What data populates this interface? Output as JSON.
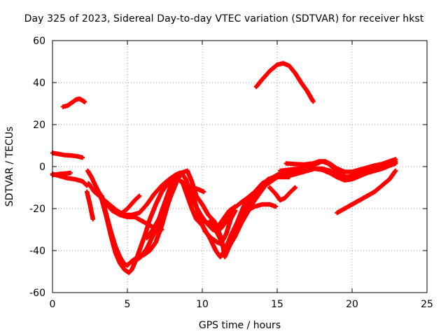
{
  "chart_data": {
    "type": "scatter",
    "title": "Day 325 of 2023, Sidereal Day-to-day VTEC variation (SDTVAR) for receiver hkst",
    "xlabel": "GPS time / hours",
    "ylabel": "SDTVAR / TECUs",
    "xlim": [
      0,
      25
    ],
    "ylim": [
      -60,
      60
    ],
    "xticks": [
      "0",
      "5",
      "10",
      "15",
      "20",
      "25"
    ],
    "yticks": [
      "60",
      "40",
      "20",
      "0",
      "-20",
      "-40",
      "-60"
    ],
    "grid": true,
    "marker": "+",
    "color": "#ff0000",
    "series": [
      {
        "name": "s1",
        "points": [
          [
            0.7,
            28.5
          ],
          [
            1.0,
            29
          ],
          [
            1.3,
            30.5
          ],
          [
            1.6,
            32
          ],
          [
            1.8,
            32.3
          ],
          [
            2.0,
            31.5
          ],
          [
            2.15,
            30.8
          ]
        ]
      },
      {
        "name": "s2",
        "points": [
          [
            13.6,
            38
          ],
          [
            14.0,
            41.5
          ],
          [
            14.5,
            45.5
          ],
          [
            15.0,
            48.5
          ],
          [
            15.4,
            49.2
          ],
          [
            15.8,
            48
          ],
          [
            16.2,
            44.5
          ],
          [
            16.6,
            40
          ],
          [
            17.0,
            36
          ],
          [
            17.4,
            31
          ]
        ]
      },
      {
        "name": "s3",
        "points": [
          [
            0.0,
            6.5
          ],
          [
            0.4,
            6.0
          ],
          [
            0.8,
            5.5
          ],
          [
            1.2,
            5.3
          ],
          [
            1.6,
            5.0
          ],
          [
            2.0,
            4.3
          ]
        ]
      },
      {
        "name": "s4",
        "points": [
          [
            0.0,
            -3.5
          ],
          [
            0.5,
            -4.5
          ],
          [
            1.0,
            -5.5
          ],
          [
            1.5,
            -6.0
          ],
          [
            2.0,
            -7.0
          ],
          [
            2.3,
            -9.0
          ]
        ]
      },
      {
        "name": "s5",
        "points": [
          [
            0.0,
            -4.0
          ],
          [
            0.5,
            -3.5
          ],
          [
            1.0,
            -3.2
          ],
          [
            1.2,
            -3.0
          ]
        ]
      },
      {
        "name": "s6",
        "points": [
          [
            2.35,
            -2
          ],
          [
            2.6,
            -5
          ],
          [
            3.0,
            -11
          ],
          [
            3.3,
            -16
          ],
          [
            3.6,
            -24
          ],
          [
            3.9,
            -33
          ],
          [
            4.2,
            -41
          ],
          [
            4.5,
            -46
          ],
          [
            4.8,
            -49
          ],
          [
            5.1,
            -50.5
          ],
          [
            5.3,
            -49
          ],
          [
            5.6,
            -44
          ],
          [
            5.9,
            -38
          ],
          [
            6.2,
            -32
          ],
          [
            6.5,
            -25
          ],
          [
            6.9,
            -18
          ],
          [
            7.3,
            -12
          ],
          [
            7.7,
            -8
          ],
          [
            8.0,
            -6
          ],
          [
            8.4,
            -6
          ],
          [
            8.7,
            -8
          ],
          [
            9.0,
            -14
          ],
          [
            9.3,
            -20
          ],
          [
            9.6,
            -25
          ],
          [
            10.0,
            -28
          ],
          [
            10.5,
            -34
          ],
          [
            10.9,
            -40
          ],
          [
            11.2,
            -43
          ],
          [
            11.5,
            -40
          ],
          [
            11.9,
            -33
          ],
          [
            12.3,
            -27
          ],
          [
            12.7,
            -20
          ],
          [
            13.0,
            -15
          ],
          [
            13.5,
            -12
          ],
          [
            14.0,
            -8
          ],
          [
            14.5,
            -6
          ],
          [
            15.0,
            -5
          ],
          [
            15.5,
            -4
          ],
          [
            16.0,
            -3
          ],
          [
            16.5,
            -2
          ],
          [
            17.0,
            -1
          ],
          [
            17.5,
            -1
          ],
          [
            18.0,
            -1
          ],
          [
            18.5,
            -2
          ],
          [
            19.0,
            -4
          ],
          [
            19.5,
            -5.5
          ],
          [
            20.0,
            -5
          ],
          [
            20.5,
            -4
          ],
          [
            21.0,
            -3
          ],
          [
            21.5,
            -1.5
          ],
          [
            22.0,
            0
          ],
          [
            22.5,
            1
          ],
          [
            22.9,
            2
          ]
        ]
      },
      {
        "name": "s7",
        "points": [
          [
            2.3,
            -12
          ],
          [
            2.5,
            -18
          ],
          [
            2.7,
            -25
          ]
        ]
      },
      {
        "name": "s8",
        "points": [
          [
            2.4,
            -8
          ],
          [
            2.8,
            -12
          ],
          [
            3.3,
            -15
          ],
          [
            3.8,
            -18
          ],
          [
            4.3,
            -21
          ],
          [
            4.8,
            -23
          ],
          [
            5.3,
            -23
          ],
          [
            5.8,
            -22
          ],
          [
            6.3,
            -18
          ],
          [
            6.8,
            -13
          ],
          [
            7.3,
            -9
          ],
          [
            7.8,
            -6
          ],
          [
            8.2,
            -4
          ],
          [
            8.5,
            -3
          ]
        ]
      },
      {
        "name": "s9",
        "points": [
          [
            3.0,
            -11
          ],
          [
            3.5,
            -17
          ],
          [
            4.0,
            -21
          ],
          [
            4.5,
            -23
          ],
          [
            5.0,
            -24
          ],
          [
            5.5,
            -24
          ],
          [
            6.0,
            -26
          ],
          [
            6.5,
            -28
          ],
          [
            7.0,
            -30
          ],
          [
            7.3,
            -30
          ]
        ]
      },
      {
        "name": "s10",
        "points": [
          [
            3.3,
            -14
          ],
          [
            3.6,
            -23
          ],
          [
            3.9,
            -31
          ],
          [
            4.2,
            -38
          ],
          [
            4.5,
            -43
          ],
          [
            4.8,
            -46.5
          ],
          [
            5.0,
            -47
          ],
          [
            5.3,
            -45
          ],
          [
            5.7,
            -43
          ],
          [
            6.1,
            -42
          ],
          [
            6.5,
            -40
          ],
          [
            6.9,
            -36
          ],
          [
            7.3,
            -28
          ],
          [
            7.7,
            -18
          ],
          [
            8.0,
            -10
          ],
          [
            8.3,
            -5
          ],
          [
            8.6,
            -3
          ],
          [
            8.9,
            -6
          ],
          [
            9.2,
            -12
          ],
          [
            9.5,
            -18
          ],
          [
            9.9,
            -23
          ],
          [
            10.3,
            -27
          ],
          [
            10.7,
            -30
          ],
          [
            11.0,
            -31
          ],
          [
            11.3,
            -29
          ],
          [
            11.7,
            -25
          ],
          [
            12.1,
            -20
          ],
          [
            12.6,
            -17
          ],
          [
            13.0,
            -15
          ]
        ]
      },
      {
        "name": "s11",
        "points": [
          [
            4.0,
            -20
          ],
          [
            4.5,
            -23
          ],
          [
            5.0,
            -20
          ],
          [
            5.5,
            -16
          ],
          [
            5.8,
            -14
          ]
        ]
      },
      {
        "name": "s12",
        "points": [
          [
            5.5,
            -45
          ],
          [
            5.9,
            -43
          ],
          [
            6.3,
            -39
          ],
          [
            6.7,
            -33
          ],
          [
            7.1,
            -28
          ],
          [
            7.5,
            -22
          ],
          [
            7.9,
            -14
          ],
          [
            8.3,
            -7
          ],
          [
            8.6,
            -3
          ],
          [
            9.0,
            -2
          ],
          [
            9.3,
            -7
          ],
          [
            9.6,
            -14
          ],
          [
            10.0,
            -18
          ],
          [
            10.4,
            -23
          ],
          [
            10.8,
            -26
          ],
          [
            11.0,
            -29
          ],
          [
            11.3,
            -35
          ],
          [
            11.5,
            -43
          ],
          [
            11.8,
            -38
          ],
          [
            12.2,
            -33
          ],
          [
            12.6,
            -27
          ],
          [
            13.0,
            -22
          ],
          [
            13.4,
            -17
          ],
          [
            13.8,
            -13
          ],
          [
            14.2,
            -9
          ],
          [
            14.6,
            -7
          ],
          [
            15.0,
            -5
          ],
          [
            15.5,
            -4
          ],
          [
            16.0,
            -4
          ],
          [
            16.5,
            -3
          ],
          [
            17.0,
            -2
          ],
          [
            17.5,
            -1
          ],
          [
            18.0,
            -1.5
          ],
          [
            18.5,
            -3
          ],
          [
            19.0,
            -5
          ],
          [
            19.5,
            -6.5
          ],
          [
            20.0,
            -6
          ],
          [
            20.5,
            -4.5
          ],
          [
            21.0,
            -3
          ],
          [
            21.5,
            -2
          ],
          [
            22.0,
            -1
          ],
          [
            22.5,
            0.5
          ],
          [
            22.9,
            1.5
          ]
        ]
      },
      {
        "name": "s13",
        "points": [
          [
            6.3,
            -34
          ],
          [
            6.7,
            -30
          ],
          [
            7.1,
            -25
          ],
          [
            7.5,
            -17
          ],
          [
            7.9,
            -9
          ],
          [
            8.2,
            -5
          ]
        ]
      },
      {
        "name": "s14",
        "points": [
          [
            8.6,
            -7
          ],
          [
            9.0,
            -9
          ],
          [
            9.4,
            -10
          ],
          [
            9.8,
            -11
          ],
          [
            10.1,
            -12
          ]
        ]
      },
      {
        "name": "s15",
        "points": [
          [
            10.5,
            -26
          ],
          [
            10.8,
            -29
          ],
          [
            11.1,
            -33
          ],
          [
            11.3,
            -36
          ],
          [
            11.6,
            -32
          ],
          [
            11.9,
            -25
          ],
          [
            12.2,
            -21
          ]
        ]
      },
      {
        "name": "s16",
        "points": [
          [
            9.3,
            -12
          ],
          [
            9.6,
            -19
          ],
          [
            9.9,
            -26
          ],
          [
            10.2,
            -31
          ],
          [
            10.6,
            -34
          ],
          [
            11.0,
            -36
          ],
          [
            11.3,
            -37
          ]
        ]
      },
      {
        "name": "s17",
        "points": [
          [
            11.0,
            -29
          ],
          [
            11.4,
            -25
          ],
          [
            11.8,
            -21
          ],
          [
            12.2,
            -19
          ]
        ]
      },
      {
        "name": "s18",
        "points": [
          [
            12.5,
            -26
          ],
          [
            12.8,
            -22
          ],
          [
            13.2,
            -18
          ],
          [
            13.6,
            -13
          ],
          [
            14.0,
            -9
          ],
          [
            14.4,
            -6
          ],
          [
            14.8,
            -5
          ],
          [
            15.3,
            -5
          ],
          [
            15.8,
            -5
          ]
        ]
      },
      {
        "name": "s19",
        "points": [
          [
            13.0,
            -21
          ],
          [
            13.5,
            -19
          ],
          [
            14.0,
            -18
          ],
          [
            14.5,
            -18
          ],
          [
            14.9,
            -19
          ]
        ]
      },
      {
        "name": "s20",
        "points": [
          [
            13.0,
            -18
          ],
          [
            13.5,
            -14
          ],
          [
            14.0,
            -9
          ],
          [
            14.5,
            -6
          ],
          [
            15.0,
            -4
          ],
          [
            15.3,
            -3
          ]
        ]
      },
      {
        "name": "s21",
        "points": [
          [
            14.5,
            -10
          ],
          [
            14.9,
            -13
          ],
          [
            15.2,
            -16
          ],
          [
            15.5,
            -15
          ],
          [
            15.9,
            -12
          ],
          [
            16.2,
            -10
          ]
        ]
      },
      {
        "name": "s22",
        "points": [
          [
            15.6,
            1.5
          ],
          [
            16.2,
            1.2
          ],
          [
            16.8,
            1.0
          ],
          [
            17.4,
            1.5
          ],
          [
            17.8,
            2.5
          ],
          [
            18.2,
            2.5
          ],
          [
            18.6,
            1
          ],
          [
            19.0,
            -1
          ],
          [
            19.5,
            -2.5
          ],
          [
            20.0,
            -2.5
          ],
          [
            20.5,
            -1.5
          ],
          [
            21.0,
            -0.5
          ],
          [
            21.5,
            0.5
          ],
          [
            22.0,
            1.2
          ],
          [
            22.5,
            2.5
          ],
          [
            22.9,
            3.5
          ]
        ]
      },
      {
        "name": "s23",
        "points": [
          [
            15.2,
            -2
          ],
          [
            15.8,
            -1.5
          ],
          [
            16.4,
            -1
          ],
          [
            17.0,
            0
          ],
          [
            17.5,
            1
          ],
          [
            18.0,
            2.5
          ],
          [
            18.4,
            1.5
          ],
          [
            18.8,
            -1
          ],
          [
            19.2,
            -3.5
          ],
          [
            19.6,
            -5
          ],
          [
            20.0,
            -4.5
          ],
          [
            20.5,
            -3
          ],
          [
            21.0,
            -2
          ],
          [
            21.5,
            -1
          ],
          [
            22.0,
            0.5
          ],
          [
            22.5,
            1.5
          ],
          [
            22.9,
            2.5
          ]
        ]
      },
      {
        "name": "s24",
        "points": [
          [
            19.0,
            -22
          ],
          [
            19.5,
            -20
          ],
          [
            20.0,
            -18
          ],
          [
            20.5,
            -16
          ],
          [
            21.0,
            -14
          ],
          [
            21.5,
            -12
          ],
          [
            22.0,
            -9
          ],
          [
            22.5,
            -6
          ],
          [
            22.9,
            -2
          ]
        ]
      }
    ]
  }
}
